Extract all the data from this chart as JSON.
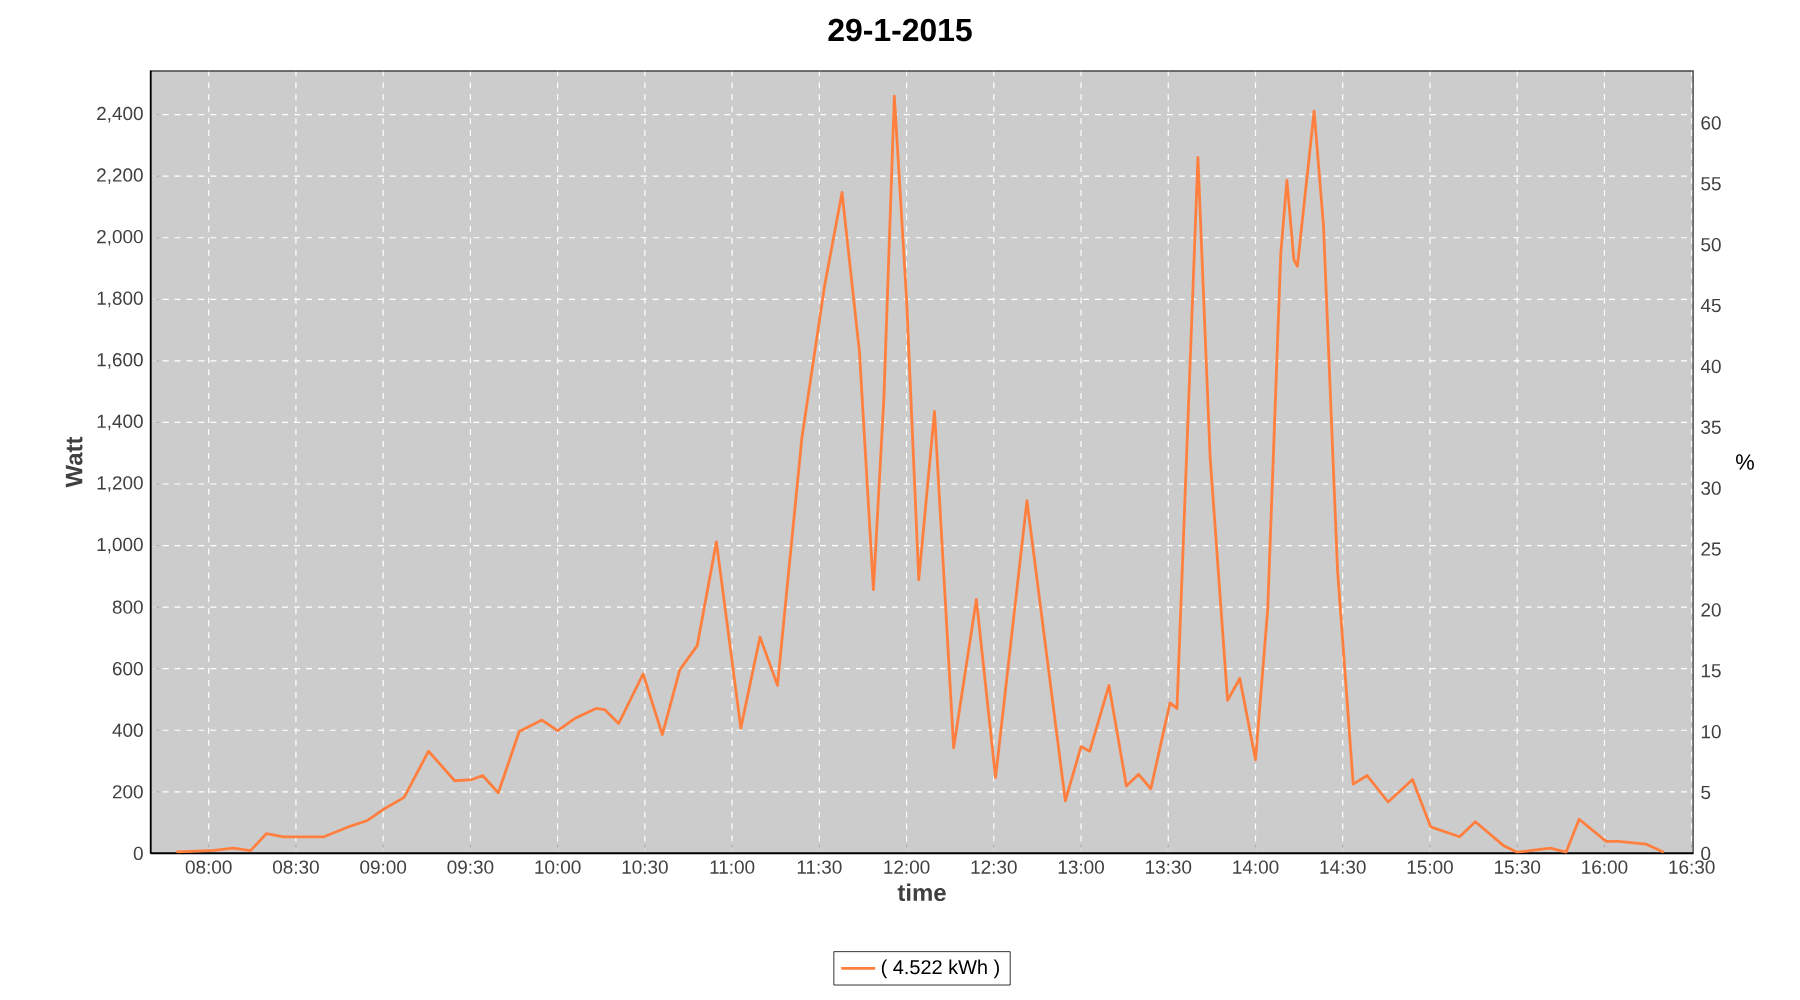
{
  "chart_data": {
    "type": "line",
    "title": "29-1-2015",
    "xlabel": "time",
    "ylabel": "Watt",
    "y2label": "%",
    "xlim": [
      7.667,
      16.51
    ],
    "ylim": [
      0,
      2543
    ],
    "y2lim": [
      0,
      64.3
    ],
    "xticks": [
      {
        "value": 8,
        "label": "08:00"
      },
      {
        "value": 8.5,
        "label": "08:30"
      },
      {
        "value": 9,
        "label": "09:00"
      },
      {
        "value": 9.5,
        "label": "09:30"
      },
      {
        "value": 10,
        "label": "10:00"
      },
      {
        "value": 10.5,
        "label": "10:30"
      },
      {
        "value": 11,
        "label": "11:00"
      },
      {
        "value": 11.5,
        "label": "11:30"
      },
      {
        "value": 12,
        "label": "12:00"
      },
      {
        "value": 12.5,
        "label": "12:30"
      },
      {
        "value": 13,
        "label": "13:00"
      },
      {
        "value": 13.5,
        "label": "13:30"
      },
      {
        "value": 14,
        "label": "14:00"
      },
      {
        "value": 14.5,
        "label": "14:30"
      },
      {
        "value": 15,
        "label": "15:00"
      },
      {
        "value": 15.5,
        "label": "15:30"
      },
      {
        "value": 16,
        "label": "16:00"
      },
      {
        "value": 16.5,
        "label": "16:30"
      }
    ],
    "yticks": [
      0,
      200,
      400,
      600,
      800,
      {
        "value": 1000,
        "label": "1,000"
      },
      {
        "value": 1200,
        "label": "1,200"
      },
      {
        "value": 1400,
        "label": "1,400"
      },
      {
        "value": 1600,
        "label": "1,600"
      },
      {
        "value": 1800,
        "label": "1,800"
      },
      {
        "value": 2000,
        "label": "2,000"
      },
      {
        "value": 2200,
        "label": "2,200"
      },
      {
        "value": 2400,
        "label": "2,400"
      }
    ],
    "y2ticks": [
      0,
      5,
      10,
      15,
      20,
      25,
      30,
      35,
      40,
      45,
      50,
      55,
      60
    ],
    "grid": true,
    "legend": "bottom",
    "marker": "none",
    "line_style": "solid",
    "series": [
      {
        "name": "( 4.522 kWh )",
        "color": "#ff7f3f",
        "x": [
          7.815,
          8.03,
          8.14,
          8.24,
          8.33,
          8.43,
          8.66,
          8.8,
          8.91,
          9.01,
          9.12,
          9.26,
          9.41,
          9.51,
          9.57,
          9.66,
          9.78,
          9.91,
          10.0,
          10.1,
          10.22,
          10.27,
          10.35,
          10.49,
          10.6,
          10.7,
          10.8,
          10.91,
          11.05,
          11.16,
          11.26,
          11.4,
          11.53,
          11.63,
          11.73,
          11.81,
          11.87,
          11.93,
          12.0,
          12.07,
          12.16,
          12.27,
          12.4,
          12.51,
          12.69,
          12.91,
          13.0,
          13.05,
          13.16,
          13.26,
          13.33,
          13.4,
          13.51,
          13.55,
          13.67,
          13.74,
          13.84,
          13.91,
          14.0,
          14.07,
          14.145,
          14.18,
          14.22,
          14.24,
          14.336,
          14.39,
          14.47,
          14.56,
          14.64,
          14.76,
          14.9,
          15.004,
          15.17,
          15.26,
          15.42,
          15.5,
          15.69,
          15.78,
          15.855,
          16.01,
          16.08,
          16.24,
          16.34
        ],
        "values": [
          5,
          10,
          17,
          9,
          64,
          54,
          54,
          86,
          107,
          146,
          182,
          332,
          236,
          240,
          253,
          197,
          396,
          433,
          399,
          439,
          471,
          467,
          422,
          583,
          386,
          596,
          675,
          1012,
          407,
          703,
          546,
          1350,
          1843,
          2147,
          1629,
          857,
          1479,
          2460,
          1800,
          889,
          1436,
          343,
          825,
          246,
          1146,
          171,
          347,
          332,
          546,
          219,
          257,
          210,
          489,
          471,
          2261,
          1286,
          497,
          568,
          304,
          793,
          1950,
          2186,
          1929,
          1907,
          2411,
          2036,
          921,
          225,
          253,
          167,
          240,
          86,
          54,
          103,
          26,
          4,
          17,
          4,
          111,
          39,
          39,
          30,
          4
        ]
      }
    ]
  }
}
